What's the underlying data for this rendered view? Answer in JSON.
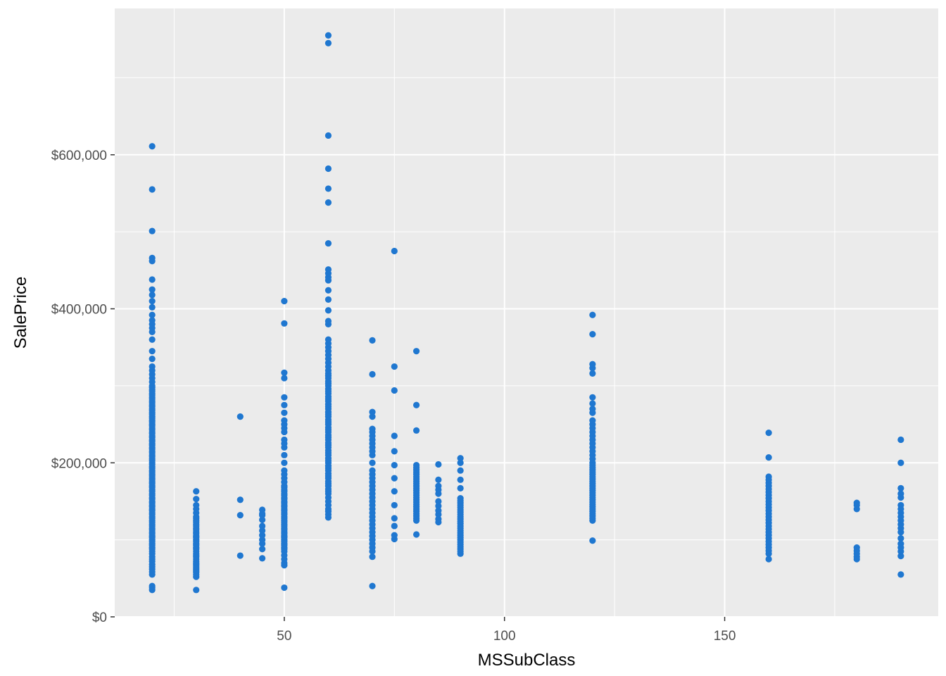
{
  "chart_data": {
    "type": "scatter",
    "title": "",
    "xlabel": "MSSubClass",
    "ylabel": "SalePrice",
    "xlim": [
      11.5,
      198.5
    ],
    "ylim": [
      0,
      790000
    ],
    "x_ticks": [
      50,
      100,
      150
    ],
    "x_tick_labels": [
      "50",
      "100",
      "150"
    ],
    "x_minor_ticks": [
      25,
      75,
      125,
      175
    ],
    "y_ticks": [
      0,
      200000,
      400000,
      600000
    ],
    "y_tick_labels": [
      "$0",
      "$200,000",
      "$400,000",
      "$600,000"
    ],
    "y_minor_ticks": [
      100000,
      300000,
      500000,
      700000
    ],
    "grid": true,
    "panel_background": "#ebebeb",
    "grid_color": "#ffffff",
    "point_color": "#1f77d0",
    "series": [
      {
        "values": [
          {
            "x": 20,
            "y": [
              35000,
              37900,
              40000,
              55000,
              58500,
              62000,
              65000,
              68000,
              72000,
              75000,
              78000,
              82000,
              85000,
              88000,
              90000,
              93000,
              95000,
              98000,
              100000,
              103000,
              105000,
              108000,
              110000,
              113000,
              115000,
              118000,
              120000,
              123000,
              125000,
              128000,
              130000,
              133000,
              135000,
              138000,
              140000,
              143000,
              145000,
              148000,
              150000,
              153000,
              155000,
              158000,
              160000,
              163000,
              165000,
              168000,
              170000,
              173000,
              175000,
              178000,
              180000,
              183000,
              185000,
              188000,
              190000,
              193000,
              195000,
              198000,
              200000,
              203000,
              205000,
              208000,
              210000,
              213000,
              215000,
              218000,
              220000,
              223000,
              225000,
              228000,
              230000,
              233000,
              235000,
              238000,
              240000,
              243000,
              245000,
              248000,
              250000,
              253000,
              255000,
              258000,
              260000,
              263000,
              265000,
              268000,
              270000,
              273000,
              275000,
              278000,
              280000,
              283000,
              285000,
              288000,
              290000,
              293000,
              295000,
              298000,
              300000,
              305000,
              310000,
              315000,
              320000,
              325000,
              335000,
              345000,
              360000,
              370000,
              375000,
              380000,
              385000,
              392000,
              402000,
              410000,
              418000,
              425000,
              438000,
              462000,
              466000,
              501000,
              555000,
              611000
            ]
          },
          {
            "x": 30,
            "y": [
              34900,
              52000,
              55000,
              58000,
              60000,
              62000,
              64000,
              66000,
              68000,
              70000,
              72000,
              75000,
              78000,
              80000,
              82000,
              85000,
              88000,
              90000,
              93000,
              95000,
              98000,
              100000,
              103000,
              105000,
              108000,
              110000,
              113000,
              115000,
              118000,
              120000,
              123000,
              125000,
              128000,
              130000,
              135000,
              140000,
              145000,
              153000,
              163000
            ]
          },
          {
            "x": 40,
            "y": [
              79500,
              132000,
              152000,
              260000
            ]
          },
          {
            "x": 45,
            "y": [
              76000,
              88000,
              95000,
              100000,
              106000,
              112000,
              118000,
              126000,
              132000,
              134000,
              139000
            ]
          },
          {
            "x": 50,
            "y": [
              37900,
              67000,
              70000,
              75000,
              80000,
              85000,
              88000,
              90000,
              93000,
              95000,
              98000,
              100000,
              103000,
              105000,
              108000,
              110000,
              113000,
              115000,
              118000,
              120000,
              123000,
              125000,
              128000,
              130000,
              133000,
              135000,
              138000,
              140000,
              143000,
              145000,
              148000,
              150000,
              153000,
              155000,
              158000,
              160000,
              163000,
              165000,
              168000,
              170000,
              175000,
              180000,
              185000,
              190000,
              200000,
              210000,
              220000,
              225000,
              230000,
              240000,
              245000,
              250000,
              255000,
              265000,
              275000,
              285000,
              310000,
              317000,
              381000,
              410000
            ]
          },
          {
            "x": 60,
            "y": [
              129000,
              133000,
              137000,
              140000,
              145000,
              150000,
              155000,
              160000,
              163000,
              166000,
              170000,
              173000,
              176000,
              180000,
              183000,
              186000,
              190000,
              193000,
              196000,
              200000,
              203000,
              206000,
              210000,
              213000,
              216000,
              220000,
              223000,
              226000,
              230000,
              233000,
              236000,
              240000,
              243000,
              246000,
              250000,
              253000,
              256000,
              260000,
              263000,
              266000,
              270000,
              273000,
              276000,
              280000,
              283000,
              286000,
              290000,
              293000,
              296000,
              300000,
              303000,
              306000,
              310000,
              313000,
              316000,
              320000,
              325000,
              330000,
              335000,
              340000,
              345000,
              350000,
              355000,
              360000,
              380000,
              384000,
              398000,
              412000,
              424000,
              437000,
              441000,
              446000,
              451000,
              485000,
              538000,
              556000,
              582000,
              625000,
              745000,
              755000
            ]
          },
          {
            "x": 70,
            "y": [
              40000,
              78000,
              85000,
              90000,
              95000,
              100000,
              105000,
              110000,
              115000,
              120000,
              125000,
              130000,
              135000,
              140000,
              145000,
              150000,
              155000,
              160000,
              165000,
              170000,
              175000,
              180000,
              185000,
              190000,
              200000,
              210000,
              215000,
              220000,
              225000,
              230000,
              235000,
              240000,
              244000,
              260000,
              266000,
              315000,
              359000
            ]
          },
          {
            "x": 75,
            "y": [
              101000,
              106000,
              118000,
              128000,
              145000,
              163000,
              180000,
              197000,
              215000,
              235000,
              294000,
              325000,
              475000
            ]
          },
          {
            "x": 80,
            "y": [
              107000,
              125000,
              128000,
              131000,
              134000,
              137000,
              140000,
              143000,
              146000,
              149000,
              152000,
              155000,
              158000,
              161000,
              164000,
              167000,
              170000,
              173000,
              176000,
              179000,
              182000,
              185000,
              188000,
              191000,
              194000,
              197000,
              242000,
              275000,
              345000
            ]
          },
          {
            "x": 85,
            "y": [
              123000,
              127000,
              133000,
              138000,
              144000,
              150000,
              160000,
              165000,
              170000,
              178000,
              198000
            ]
          },
          {
            "x": 90,
            "y": [
              82000,
              85000,
              88000,
              91000,
              94000,
              97000,
              100000,
              103000,
              106000,
              109000,
              112000,
              115000,
              118000,
              121000,
              124000,
              127000,
              130000,
              133000,
              136000,
              139000,
              142000,
              145000,
              148000,
              151000,
              154000,
              167000,
              178000,
              190000,
              200000,
              206000
            ]
          },
          {
            "x": 120,
            "y": [
              99000,
              125000,
              128000,
              131000,
              134000,
              137000,
              140000,
              143000,
              146000,
              149000,
              152000,
              155000,
              158000,
              161000,
              164000,
              167000,
              170000,
              173000,
              176000,
              179000,
              182000,
              185000,
              188000,
              191000,
              194000,
              197000,
              200000,
              205000,
              210000,
              215000,
              220000,
              225000,
              230000,
              235000,
              240000,
              245000,
              250000,
              255000,
              265000,
              270000,
              277000,
              285000,
              316000,
              323000,
              328000,
              367000,
              392000
            ]
          },
          {
            "x": 160,
            "y": [
              75000,
              82000,
              86000,
              90000,
              94000,
              98000,
              102000,
              106000,
              110000,
              114000,
              118000,
              122000,
              126000,
              130000,
              134000,
              138000,
              142000,
              146000,
              150000,
              154000,
              158000,
              162000,
              166000,
              170000,
              174000,
              178000,
              182000,
              207000,
              239000
            ]
          },
          {
            "x": 180,
            "y": [
              75000,
              78000,
              82000,
              86000,
              90000,
              140000,
              145000,
              148000
            ]
          },
          {
            "x": 190,
            "y": [
              55000,
              79000,
              85000,
              90000,
              95000,
              102000,
              110000,
              115000,
              120000,
              125000,
              130000,
              135000,
              140000,
              145000,
              155000,
              160000,
              167000,
              200000,
              230000
            ]
          }
        ]
      }
    ]
  }
}
